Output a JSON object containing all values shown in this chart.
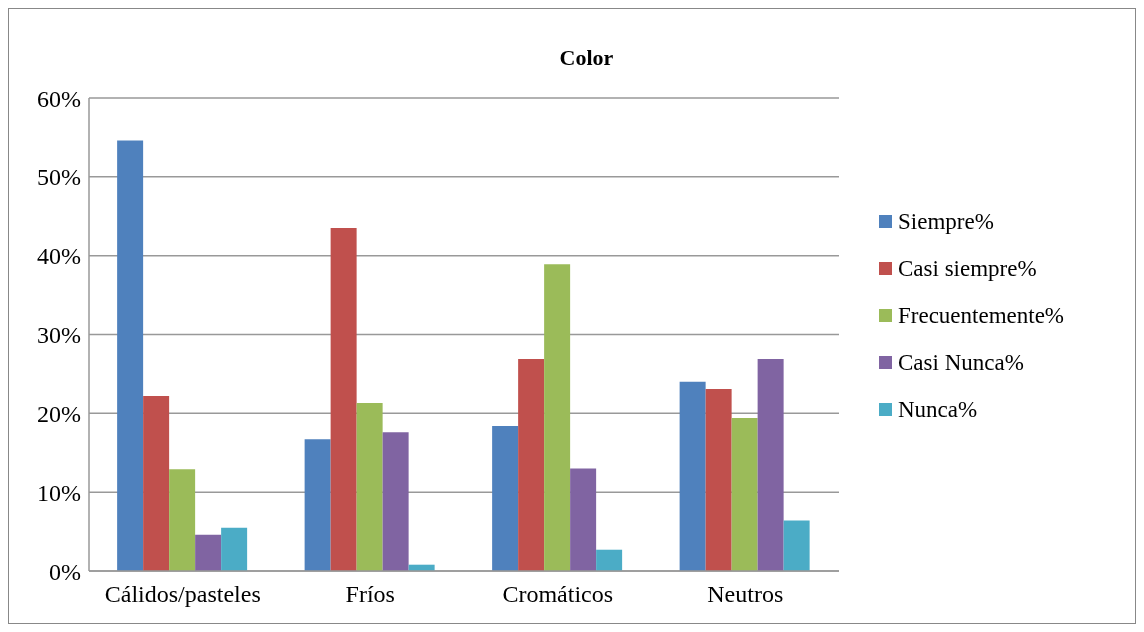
{
  "chart_data": {
    "type": "bar",
    "title": "Color",
    "categories": [
      "Cálidos/pasteles",
      "Fríos",
      "Cromáticos",
      "Neutros"
    ],
    "series": [
      {
        "name": "Siempre%",
        "color": "#4f81bd",
        "values": [
          54.6,
          16.7,
          18.4,
          24.0
        ]
      },
      {
        "name": "Casi siempre%",
        "color": "#c0504d",
        "values": [
          22.2,
          43.5,
          26.9,
          23.1
        ]
      },
      {
        "name": "Frecuentemente%",
        "color": "#9bbb59",
        "values": [
          12.9,
          21.3,
          38.9,
          19.4
        ]
      },
      {
        "name": "Casi Nunca%",
        "color": "#8064a2",
        "values": [
          4.6,
          17.6,
          13.0,
          26.9
        ]
      },
      {
        "name": "Nunca%",
        "color": "#4bacc6",
        "values": [
          5.5,
          0.8,
          2.7,
          6.4
        ]
      }
    ],
    "ylim": [
      0,
      60
    ],
    "yticks": [
      {
        "value": 0,
        "label": "0%"
      },
      {
        "value": 10,
        "label": "10%"
      },
      {
        "value": 20,
        "label": "20%"
      },
      {
        "value": 30,
        "label": "30%"
      },
      {
        "value": 40,
        "label": "40%"
      },
      {
        "value": 50,
        "label": "50%"
      },
      {
        "value": 60,
        "label": "60%"
      }
    ],
    "grid": "y",
    "legend": "right"
  }
}
